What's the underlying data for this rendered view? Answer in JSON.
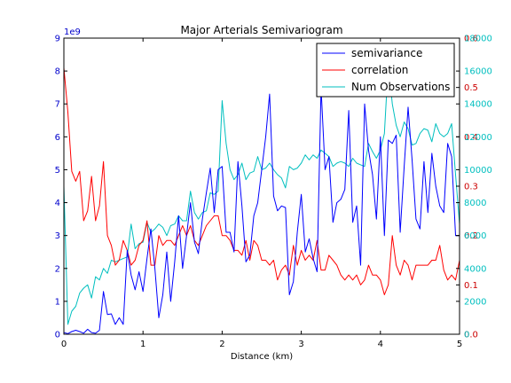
{
  "chart_data": {
    "type": "line",
    "title": "Major Arterials Semivariogram",
    "xlabel": "Distance (km)",
    "xlim": [
      0,
      5
    ],
    "x_ticks": [
      "0",
      "1",
      "2",
      "3",
      "4",
      "5"
    ],
    "y_left": {
      "ylim": [
        0,
        9
      ],
      "ticks": [
        "0",
        "1",
        "2",
        "3",
        "4",
        "5",
        "6",
        "7",
        "8",
        "9"
      ],
      "multiplier_label": "1e9",
      "color": "#0000cc"
    },
    "y_corr": {
      "ylim": [
        0,
        0.6
      ],
      "ticks": [
        "0.0",
        "0.1",
        "0.2",
        "0.3",
        "0.4",
        "0.5",
        "0.6"
      ],
      "color": "#cc0000"
    },
    "y_obs": {
      "ylim": [
        0,
        18000
      ],
      "ticks": [
        "0",
        "2000",
        "4000",
        "6000",
        "8000",
        "10000",
        "12000",
        "14000",
        "16000",
        "18000"
      ],
      "color": "#00bfbf"
    },
    "legend": {
      "placement": "top-right",
      "entries": [
        "semivariance",
        "correlation",
        "Num Observations"
      ]
    },
    "series": [
      {
        "name": "semivariance",
        "color": "#0000ff",
        "axis": "left",
        "x": [
          0.0,
          0.05,
          0.1,
          0.15,
          0.2,
          0.25,
          0.3,
          0.35,
          0.4,
          0.45,
          0.5,
          0.55,
          0.6,
          0.65,
          0.7,
          0.75,
          0.8,
          0.85,
          0.9,
          0.95,
          1.0,
          1.05,
          1.1,
          1.15,
          1.2,
          1.25,
          1.3,
          1.35,
          1.4,
          1.45,
          1.5,
          1.55,
          1.6,
          1.65,
          1.7,
          1.75,
          1.8,
          1.85,
          1.9,
          1.95,
          2.0,
          2.05,
          2.1,
          2.15,
          2.2,
          2.25,
          2.3,
          2.35,
          2.4,
          2.45,
          2.5,
          2.55,
          2.6,
          2.65,
          2.7,
          2.75,
          2.8,
          2.85,
          2.9,
          2.95,
          3.0,
          3.05,
          3.1,
          3.15,
          3.2,
          3.25,
          3.3,
          3.35,
          3.4,
          3.45,
          3.5,
          3.55,
          3.6,
          3.65,
          3.7,
          3.75,
          3.8,
          3.85,
          3.9,
          3.95,
          4.0,
          4.05,
          4.1,
          4.15,
          4.2,
          4.25,
          4.3,
          4.35,
          4.4,
          4.45,
          4.5,
          4.55,
          4.6,
          4.65,
          4.7,
          4.75,
          4.8,
          4.85,
          4.9,
          4.95,
          5.0
        ],
        "y": [
          0.05,
          0.02,
          0.08,
          0.12,
          0.08,
          0.03,
          0.15,
          0.05,
          0.03,
          0.12,
          1.3,
          0.6,
          0.62,
          0.3,
          0.5,
          0.3,
          2.55,
          1.8,
          1.35,
          1.9,
          1.3,
          2.3,
          3.2,
          2.0,
          0.5,
          1.2,
          2.5,
          1.0,
          2.2,
          3.6,
          2.0,
          3.0,
          4.0,
          2.8,
          2.45,
          3.5,
          4.3,
          5.05,
          3.7,
          5.0,
          5.1,
          3.1,
          3.1,
          2.5,
          5.25,
          3.9,
          2.2,
          2.4,
          3.6,
          4.0,
          5.0,
          6.0,
          7.3,
          4.2,
          3.75,
          3.9,
          3.85,
          1.2,
          1.6,
          3.1,
          4.25,
          2.5,
          2.9,
          2.3,
          1.9,
          7.5,
          5.0,
          5.4,
          3.4,
          4.0,
          4.1,
          4.4,
          6.8,
          3.4,
          3.9,
          2.1,
          7.0,
          5.6,
          4.85,
          3.5,
          6.0,
          3.0,
          5.9,
          5.8,
          6.05,
          3.1,
          5.1,
          6.9,
          5.3,
          3.5,
          3.2,
          5.25,
          3.7,
          5.5,
          4.5,
          3.9,
          3.7,
          5.8,
          5.4,
          3.0,
          3.0
        ]
      },
      {
        "name": "correlation",
        "color": "#ff0000",
        "axis": "corr",
        "x": [
          0.0,
          0.05,
          0.1,
          0.15,
          0.2,
          0.25,
          0.3,
          0.35,
          0.4,
          0.45,
          0.5,
          0.55,
          0.6,
          0.65,
          0.7,
          0.75,
          0.8,
          0.85,
          0.9,
          0.95,
          1.0,
          1.05,
          1.1,
          1.15,
          1.2,
          1.25,
          1.3,
          1.35,
          1.4,
          1.45,
          1.5,
          1.55,
          1.6,
          1.65,
          1.7,
          1.75,
          1.8,
          1.85,
          1.9,
          1.95,
          2.0,
          2.05,
          2.1,
          2.15,
          2.2,
          2.25,
          2.3,
          2.35,
          2.4,
          2.45,
          2.5,
          2.55,
          2.6,
          2.65,
          2.7,
          2.75,
          2.8,
          2.85,
          2.9,
          2.95,
          3.0,
          3.05,
          3.1,
          3.15,
          3.2,
          3.25,
          3.3,
          3.35,
          3.4,
          3.45,
          3.5,
          3.55,
          3.6,
          3.65,
          3.7,
          3.75,
          3.8,
          3.85,
          3.9,
          3.95,
          4.0,
          4.05,
          4.1,
          4.15,
          4.2,
          4.25,
          4.3,
          4.35,
          4.4,
          4.45,
          4.5,
          4.55,
          4.6,
          4.65,
          4.7,
          4.75,
          4.8,
          4.85,
          4.9,
          4.95,
          5.0
        ],
        "y": [
          0.54,
          0.45,
          0.33,
          0.31,
          0.33,
          0.23,
          0.25,
          0.32,
          0.23,
          0.26,
          0.35,
          0.2,
          0.18,
          0.14,
          0.15,
          0.19,
          0.17,
          0.14,
          0.15,
          0.18,
          0.19,
          0.23,
          0.14,
          0.14,
          0.2,
          0.18,
          0.19,
          0.19,
          0.18,
          0.2,
          0.22,
          0.2,
          0.22,
          0.19,
          0.18,
          0.2,
          0.22,
          0.23,
          0.24,
          0.24,
          0.2,
          0.2,
          0.19,
          0.17,
          0.17,
          0.16,
          0.19,
          0.15,
          0.19,
          0.18,
          0.15,
          0.15,
          0.14,
          0.15,
          0.11,
          0.13,
          0.14,
          0.12,
          0.18,
          0.14,
          0.17,
          0.15,
          0.16,
          0.15,
          0.19,
          0.13,
          0.13,
          0.16,
          0.15,
          0.14,
          0.12,
          0.11,
          0.12,
          0.11,
          0.12,
          0.1,
          0.11,
          0.14,
          0.12,
          0.12,
          0.11,
          0.08,
          0.1,
          0.2,
          0.14,
          0.12,
          0.15,
          0.14,
          0.11,
          0.14,
          0.14,
          0.14,
          0.14,
          0.15,
          0.15,
          0.18,
          0.13,
          0.11,
          0.12,
          0.11,
          0.15
        ]
      },
      {
        "name": "Num Observations",
        "color": "#00bfbf",
        "axis": "obs",
        "x": [
          0.0,
          0.05,
          0.1,
          0.15,
          0.2,
          0.25,
          0.3,
          0.35,
          0.4,
          0.45,
          0.5,
          0.55,
          0.6,
          0.65,
          0.7,
          0.75,
          0.8,
          0.85,
          0.9,
          0.95,
          1.0,
          1.05,
          1.1,
          1.15,
          1.2,
          1.25,
          1.3,
          1.35,
          1.4,
          1.45,
          1.5,
          1.55,
          1.6,
          1.65,
          1.7,
          1.75,
          1.8,
          1.85,
          1.9,
          1.95,
          2.0,
          2.05,
          2.1,
          2.15,
          2.2,
          2.25,
          2.3,
          2.35,
          2.4,
          2.45,
          2.5,
          2.55,
          2.6,
          2.65,
          2.7,
          2.75,
          2.8,
          2.85,
          2.9,
          2.95,
          3.0,
          3.05,
          3.1,
          3.15,
          3.2,
          3.25,
          3.3,
          3.35,
          3.4,
          3.45,
          3.5,
          3.55,
          3.6,
          3.65,
          3.7,
          3.75,
          3.8,
          3.85,
          3.9,
          3.95,
          4.0,
          4.05,
          4.1,
          4.15,
          4.2,
          4.25,
          4.3,
          4.35,
          4.4,
          4.45,
          4.5,
          4.55,
          4.6,
          4.65,
          4.7,
          4.75,
          4.8,
          4.85,
          4.9,
          4.95,
          5.0
        ],
        "y": [
          9000,
          600,
          1400,
          1700,
          2500,
          2800,
          3000,
          2200,
          3500,
          3300,
          4000,
          3700,
          4500,
          4400,
          4500,
          4600,
          4700,
          6700,
          5200,
          5500,
          5600,
          6800,
          6200,
          6400,
          6700,
          6500,
          6000,
          6600,
          6700,
          7200,
          6900,
          6900,
          8700,
          7400,
          7000,
          7400,
          7500,
          8600,
          8500,
          8700,
          14200,
          11600,
          10000,
          9400,
          9700,
          10400,
          9400,
          9800,
          9900,
          10800,
          10000,
          10100,
          10400,
          10000,
          9700,
          9500,
          8900,
          10200,
          10000,
          10100,
          10400,
          10900,
          10600,
          10900,
          10700,
          11200,
          11000,
          10800,
          10200,
          10400,
          10500,
          10400,
          10200,
          10700,
          10400,
          10300,
          10200,
          11600,
          11100,
          10700,
          11200,
          12200,
          16500,
          14000,
          12700,
          12000,
          12900,
          12500,
          11500,
          11600,
          12200,
          12500,
          12400,
          11700,
          12800,
          12200,
          12000,
          12200,
          12800,
          9700,
          6700
        ]
      }
    ]
  }
}
